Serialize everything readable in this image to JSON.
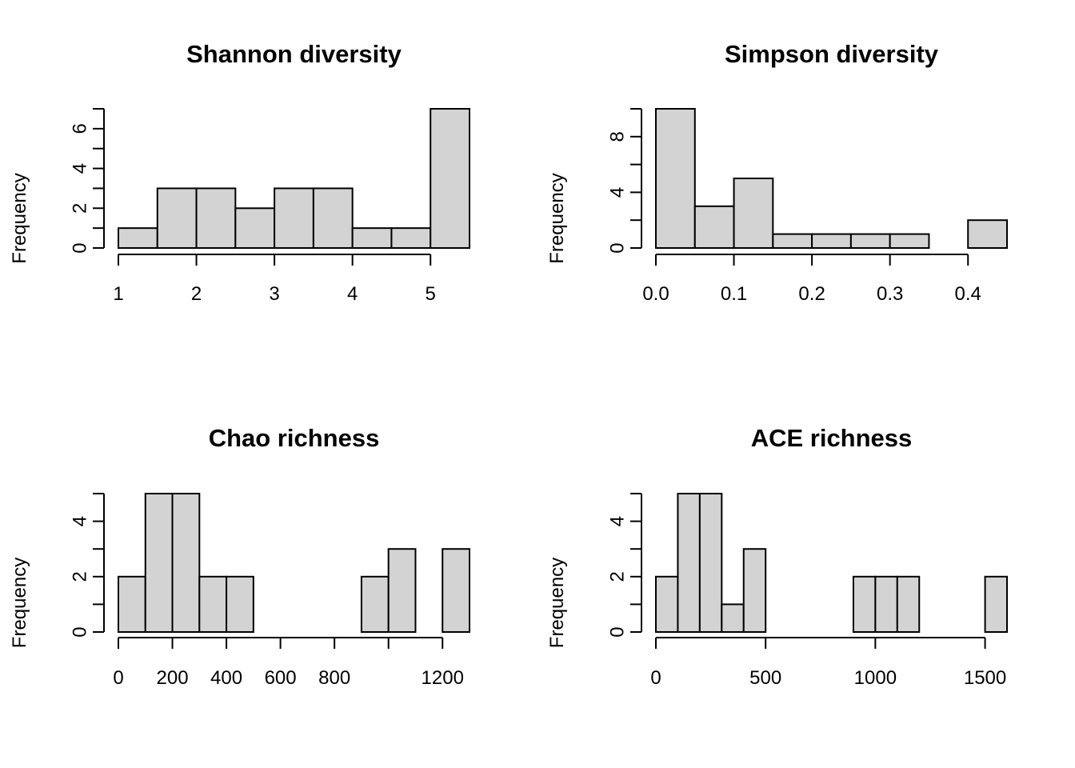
{
  "chart_data": [
    {
      "type": "histogram",
      "title": "Shannon diversity",
      "ylabel": "Frequency",
      "xlabel": "",
      "bins": [
        [
          1,
          1.5
        ],
        [
          1.5,
          2
        ],
        [
          2,
          2.5
        ],
        [
          2.5,
          3
        ],
        [
          3,
          3.5
        ],
        [
          3.5,
          4
        ],
        [
          4,
          4.5
        ],
        [
          4.5,
          5
        ],
        [
          5,
          5.5
        ]
      ],
      "counts": [
        1,
        3,
        3,
        2,
        3,
        3,
        1,
        1,
        7
      ],
      "xlim": [
        1,
        5.5
      ],
      "ylim": [
        0,
        7
      ],
      "x_ticks": [
        1,
        2,
        3,
        4,
        5
      ],
      "x_tick_labels": [
        "1",
        "2",
        "3",
        "4",
        "5"
      ],
      "y_ticks": [
        0,
        1,
        2,
        3,
        4,
        5,
        6,
        7
      ],
      "y_tick_labels": [
        "0",
        "",
        "2",
        "",
        "4",
        "",
        "6",
        ""
      ],
      "bar_color": "#d3d3d3"
    },
    {
      "type": "histogram",
      "title": "Simpson diversity",
      "ylabel": "Frequency",
      "xlabel": "",
      "bins": [
        [
          0,
          0.05
        ],
        [
          0.05,
          0.1
        ],
        [
          0.1,
          0.15
        ],
        [
          0.15,
          0.2
        ],
        [
          0.2,
          0.25
        ],
        [
          0.25,
          0.3
        ],
        [
          0.3,
          0.35
        ],
        [
          0.35,
          0.4
        ],
        [
          0.4,
          0.45
        ]
      ],
      "counts": [
        10,
        3,
        5,
        1,
        1,
        1,
        1,
        0,
        2
      ],
      "xlim": [
        0,
        0.45
      ],
      "ylim": [
        0,
        10
      ],
      "x_ticks": [
        0,
        0.1,
        0.2,
        0.3,
        0.4
      ],
      "x_tick_labels": [
        "0.0",
        "0.1",
        "0.2",
        "0.3",
        "0.4"
      ],
      "y_ticks": [
        0,
        2,
        4,
        6,
        8,
        10
      ],
      "y_tick_labels": [
        "0",
        "",
        "4",
        "",
        "8",
        ""
      ],
      "bar_color": "#d3d3d3"
    },
    {
      "type": "histogram",
      "title": "Chao richness",
      "ylabel": "Frequency",
      "xlabel": "",
      "bins": [
        [
          0,
          100
        ],
        [
          100,
          200
        ],
        [
          200,
          300
        ],
        [
          300,
          400
        ],
        [
          400,
          500
        ],
        [
          500,
          600
        ],
        [
          600,
          700
        ],
        [
          700,
          800
        ],
        [
          800,
          900
        ],
        [
          900,
          1000
        ],
        [
          1000,
          1100
        ],
        [
          1100,
          1200
        ],
        [
          1200,
          1300
        ]
      ],
      "counts": [
        2,
        5,
        5,
        2,
        2,
        0,
        0,
        0,
        0,
        2,
        3,
        0,
        3
      ],
      "xlim": [
        0,
        1300
      ],
      "ylim": [
        0,
        5
      ],
      "x_ticks": [
        0,
        200,
        400,
        600,
        800,
        1000,
        1200
      ],
      "x_tick_labels": [
        "0",
        "200",
        "400",
        "600",
        "800",
        "",
        "1200"
      ],
      "y_ticks": [
        0,
        1,
        2,
        3,
        4,
        5
      ],
      "y_tick_labels": [
        "0",
        "",
        "2",
        "",
        "4",
        ""
      ],
      "bar_color": "#d3d3d3"
    },
    {
      "type": "histogram",
      "title": "ACE richness",
      "ylabel": "Frequency",
      "xlabel": "",
      "bins": [
        [
          0,
          100
        ],
        [
          100,
          200
        ],
        [
          200,
          300
        ],
        [
          300,
          400
        ],
        [
          400,
          500
        ],
        [
          500,
          600
        ],
        [
          600,
          700
        ],
        [
          700,
          800
        ],
        [
          800,
          900
        ],
        [
          900,
          1000
        ],
        [
          1000,
          1100
        ],
        [
          1100,
          1200
        ],
        [
          1200,
          1300
        ],
        [
          1300,
          1400
        ],
        [
          1400,
          1500
        ],
        [
          1500,
          1600
        ]
      ],
      "counts": [
        2,
        5,
        5,
        1,
        3,
        0,
        0,
        0,
        0,
        2,
        2,
        2,
        0,
        0,
        0,
        2
      ],
      "xlim": [
        0,
        1600
      ],
      "ylim": [
        0,
        5
      ],
      "x_ticks": [
        0,
        500,
        1000,
        1500
      ],
      "x_tick_labels": [
        "0",
        "500",
        "1000",
        "1500"
      ],
      "y_ticks": [
        0,
        1,
        2,
        3,
        4,
        5
      ],
      "y_tick_labels": [
        "0",
        "",
        "2",
        "",
        "4",
        ""
      ],
      "bar_color": "#d3d3d3"
    }
  ]
}
